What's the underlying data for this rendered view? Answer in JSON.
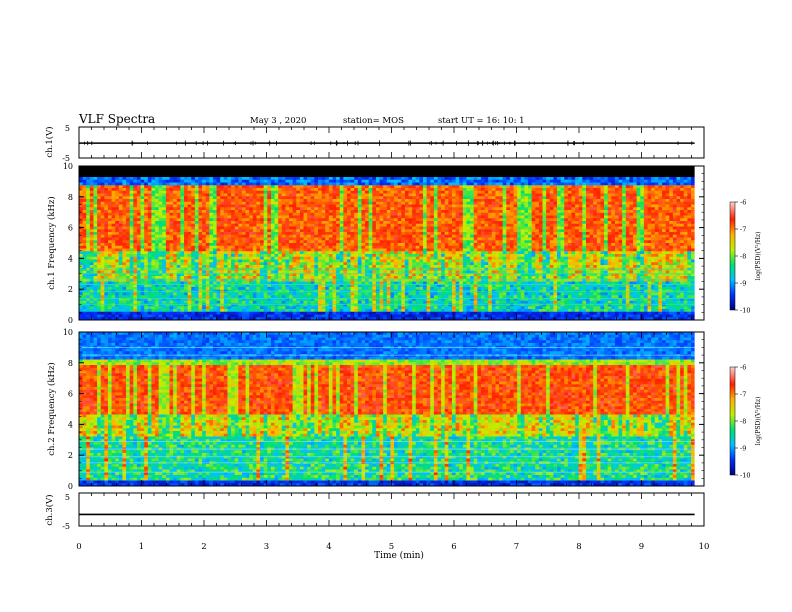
{
  "header": {
    "title": "VLF Spectra",
    "date": "May 3 , 2020",
    "station": "station= MOS",
    "start": "start UT = 16: 10: 1"
  },
  "chart_data": [
    {
      "type": "line",
      "name": "waveform-ch1",
      "ylabel": "ch.1(V)",
      "ylim": [
        -5,
        5
      ],
      "ytick_labels": [
        "5",
        "-5"
      ],
      "x_range": [
        0,
        9.85
      ],
      "level": -0.2
    },
    {
      "type": "heatmap",
      "name": "spectrogram-ch1",
      "ylabel": "ch.1 Frequency (kHz)",
      "ylim": [
        0,
        10
      ],
      "xlim": [
        0,
        10
      ],
      "data_xlim": [
        0,
        9.85
      ],
      "ytick_labels": [
        "0",
        "2",
        "4",
        "6",
        "8",
        "10"
      ],
      "band_khz": [
        0.5,
        8.7
      ],
      "colorbar": {
        "label": "log(PSD)(V²/Hz)",
        "range": [
          -10,
          -6
        ],
        "tick_labels": [
          "-6",
          "-7",
          "-8",
          "-9",
          "-10"
        ],
        "colors": [
          "#000080",
          "#0030ff",
          "#00c0ff",
          "#00e070",
          "#c0f000",
          "#ffb000",
          "#ff2000",
          "#ffd0d0"
        ]
      }
    },
    {
      "type": "heatmap",
      "name": "spectrogram-ch2",
      "ylabel": "ch.2 Frequency (kHz)",
      "ylim": [
        0,
        10
      ],
      "xlim": [
        0,
        10
      ],
      "data_xlim": [
        0,
        9.85
      ],
      "ytick_labels": [
        "0",
        "2",
        "4",
        "6",
        "8",
        "10"
      ],
      "band_khz": [
        3.5,
        7.8
      ],
      "colorbar": {
        "label": "log(PSD)(V²/Hz)",
        "range": [
          -10,
          -6
        ],
        "tick_labels": [
          "-6",
          "-7",
          "-8",
          "-9",
          "-10"
        ],
        "colors": [
          "#000080",
          "#0030ff",
          "#00c0ff",
          "#00e070",
          "#c0f000",
          "#ffb000",
          "#ff2000",
          "#ffd0d0"
        ]
      }
    },
    {
      "type": "line",
      "name": "waveform-ch3",
      "ylabel": "ch.3(V)",
      "ylim": [
        -5,
        5
      ],
      "ytick_labels": [
        "5",
        "-5"
      ],
      "x_range": [
        0,
        9.85
      ],
      "level": -1.5
    }
  ],
  "x_axis": {
    "label": "Time (min)",
    "range": [
      0,
      10
    ],
    "tick_labels": [
      "0",
      "1",
      "2",
      "3",
      "4",
      "5",
      "6",
      "7",
      "8",
      "9",
      "10"
    ]
  }
}
